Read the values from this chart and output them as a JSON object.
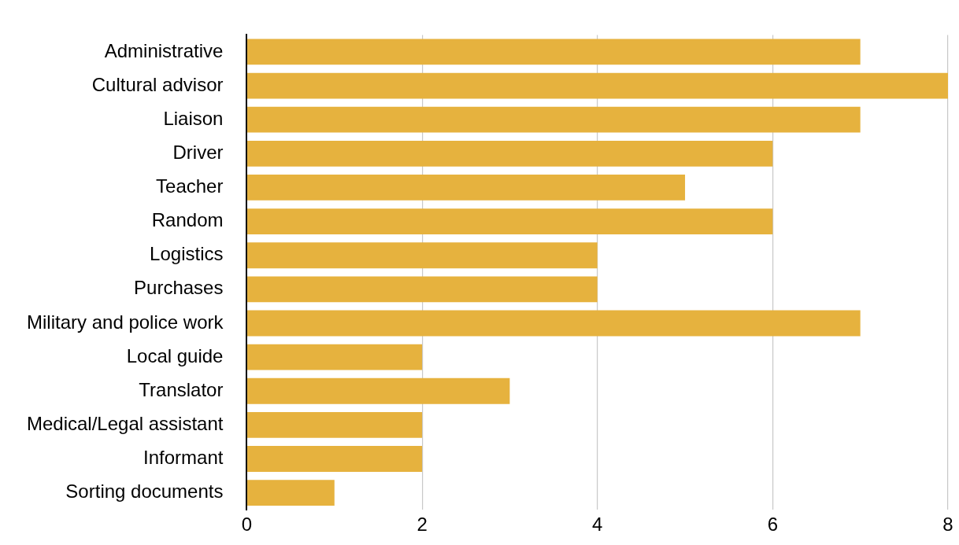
{
  "chart_data": {
    "type": "bar",
    "orientation": "horizontal",
    "categories": [
      "Administrative",
      "Cultural advisor",
      "Liaison",
      "Driver",
      "Teacher",
      "Random",
      "Logistics",
      "Purchases",
      "Military and police work",
      "Local guide",
      "Translator",
      "Medical/Legal assistant",
      "Informant",
      "Sorting documents"
    ],
    "values": [
      7,
      8,
      7,
      6,
      5,
      6,
      4,
      4,
      7,
      2,
      3,
      2,
      2,
      1
    ],
    "color": "#e6b23e",
    "xlim": [
      0,
      8
    ],
    "xticks": [
      0,
      2,
      4,
      6,
      8
    ],
    "grid": "x",
    "legend": false
  }
}
